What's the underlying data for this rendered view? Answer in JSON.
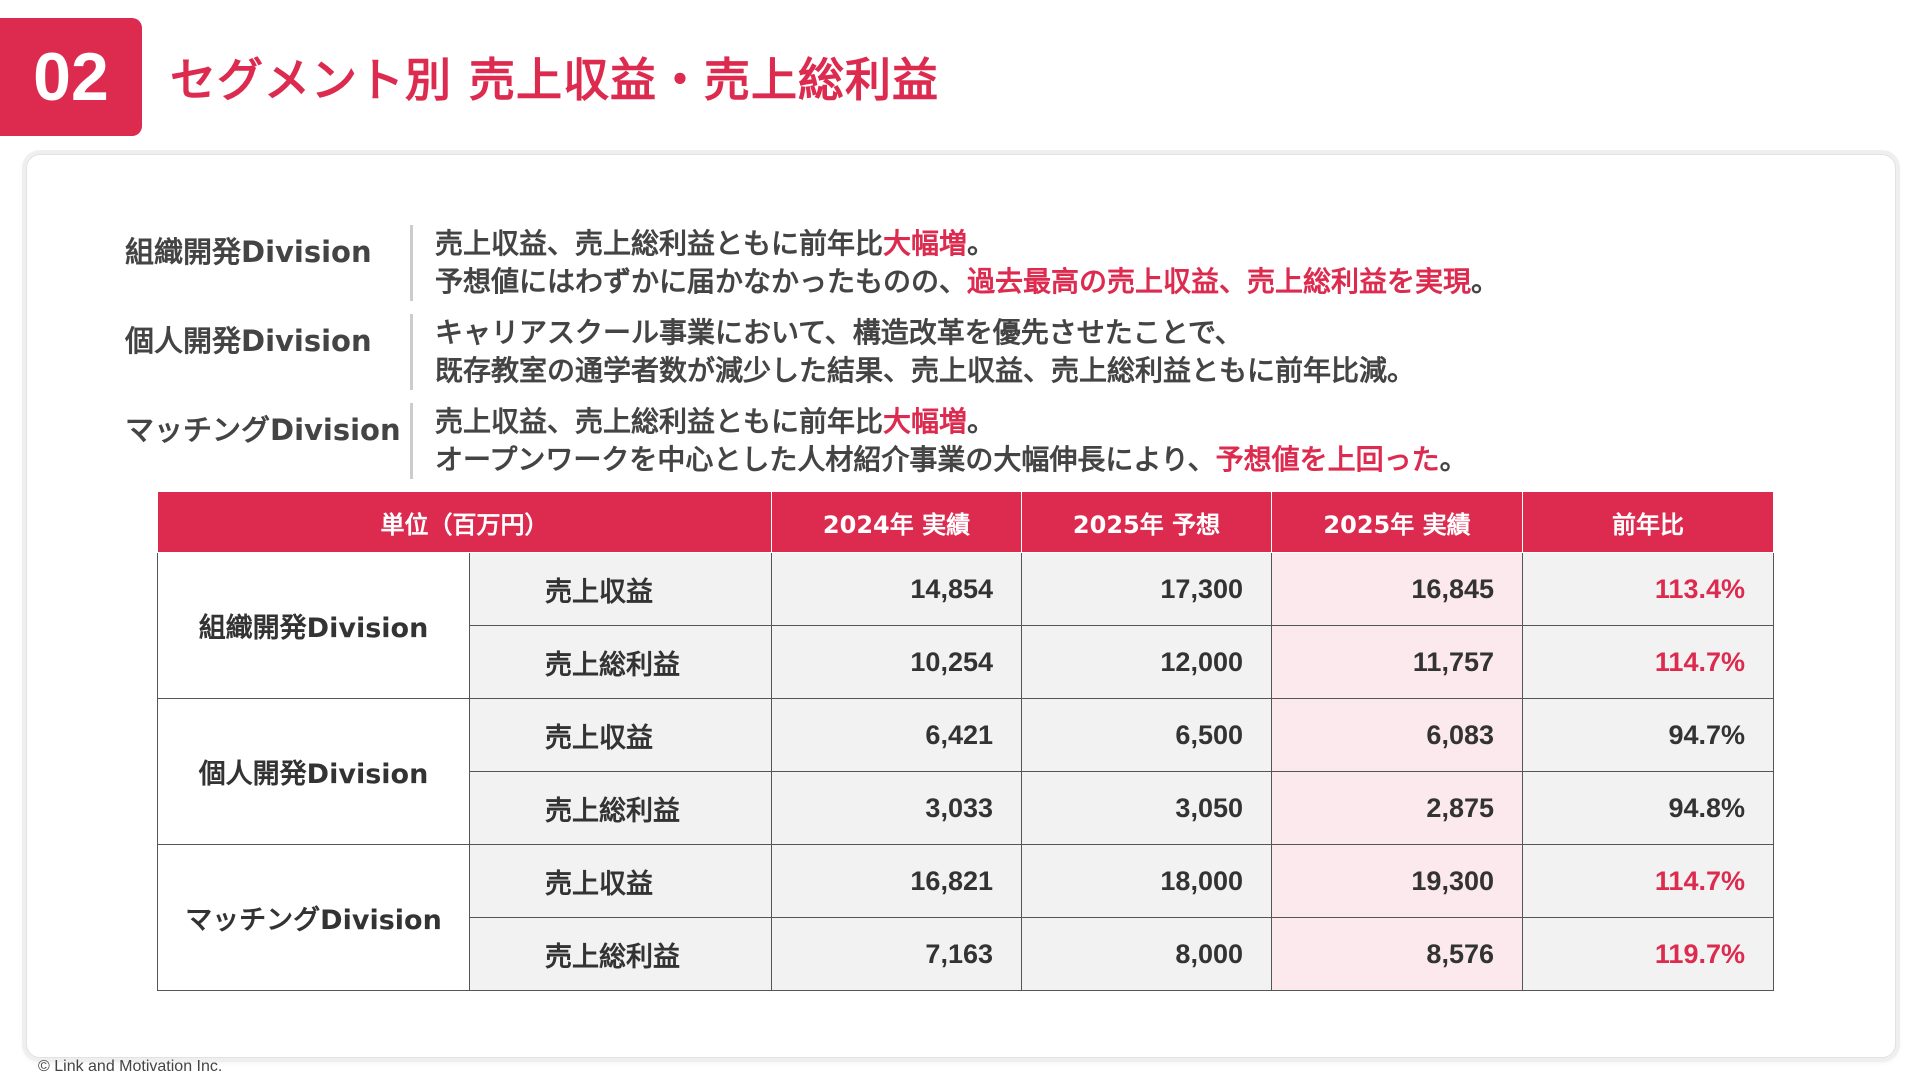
{
  "header": {
    "number": "02",
    "title": "セグメント別 売上収益・売上総利益"
  },
  "summary": [
    {
      "label": "組織開発Division",
      "lines": [
        [
          {
            "t": "売上収益、売上総利益ともに前年比"
          },
          {
            "t": "大幅増",
            "hl": true
          },
          {
            "t": "。"
          }
        ],
        [
          {
            "t": "予想値にはわずかに届かなかったものの、"
          },
          {
            "t": "過去最高の売上収益、売上総利益を実現",
            "hl": true
          },
          {
            "t": "。"
          }
        ]
      ]
    },
    {
      "label": "個人開発Division",
      "lines": [
        [
          {
            "t": "キャリアスクール事業において、構造改革を優先させたことで、"
          }
        ],
        [
          {
            "t": "既存教室の通学者数が減少した結果、売上収益、売上総利益ともに前年比減。"
          }
        ]
      ]
    },
    {
      "label": "マッチングDivision",
      "lines": [
        [
          {
            "t": "売上収益、売上総利益ともに前年比"
          },
          {
            "t": "大幅増",
            "hl": true
          },
          {
            "t": "。"
          }
        ],
        [
          {
            "t": "オープンワークを中心とした人材紹介事業の大幅伸長により、"
          },
          {
            "t": "予想値を上回った",
            "hl": true
          },
          {
            "t": "。"
          }
        ]
      ]
    }
  ],
  "table": {
    "headers": {
      "unit": "単位（百万円）",
      "col2024": "2024年 実績",
      "col2025f": "2025年 予想",
      "col2025a": "2025年 実績",
      "ratio": "前年比"
    },
    "divisions": [
      {
        "name": "組織開発Division",
        "rows": [
          {
            "metric": "売上収益",
            "v2024": "14,854",
            "v2025f": "17,300",
            "v2025a": "16,845",
            "ratio": "113.4%",
            "ratio_up": true
          },
          {
            "metric": "売上総利益",
            "v2024": "10,254",
            "v2025f": "12,000",
            "v2025a": "11,757",
            "ratio": "114.7%",
            "ratio_up": true
          }
        ]
      },
      {
        "name": "個人開発Division",
        "rows": [
          {
            "metric": "売上収益",
            "v2024": "6,421",
            "v2025f": "6,500",
            "v2025a": "6,083",
            "ratio": "94.7%",
            "ratio_up": false
          },
          {
            "metric": "売上総利益",
            "v2024": "3,033",
            "v2025f": "3,050",
            "v2025a": "2,875",
            "ratio": "94.8%",
            "ratio_up": false
          }
        ]
      },
      {
        "name": "マッチングDivision",
        "rows": [
          {
            "metric": "売上収益",
            "v2024": "16,821",
            "v2025f": "18,000",
            "v2025a": "19,300",
            "ratio": "114.7%",
            "ratio_up": true
          },
          {
            "metric": "売上総利益",
            "v2024": "7,163",
            "v2025f": "8,000",
            "v2025a": "8,576",
            "ratio": "119.7%",
            "ratio_up": true
          }
        ]
      }
    ]
  },
  "footer": {
    "copyright": "© Link and Motivation Inc."
  },
  "colors": {
    "accent": "#dc2b4f",
    "highlight_column": "#fbe9ed",
    "cell_gray": "#f2f2f2"
  }
}
